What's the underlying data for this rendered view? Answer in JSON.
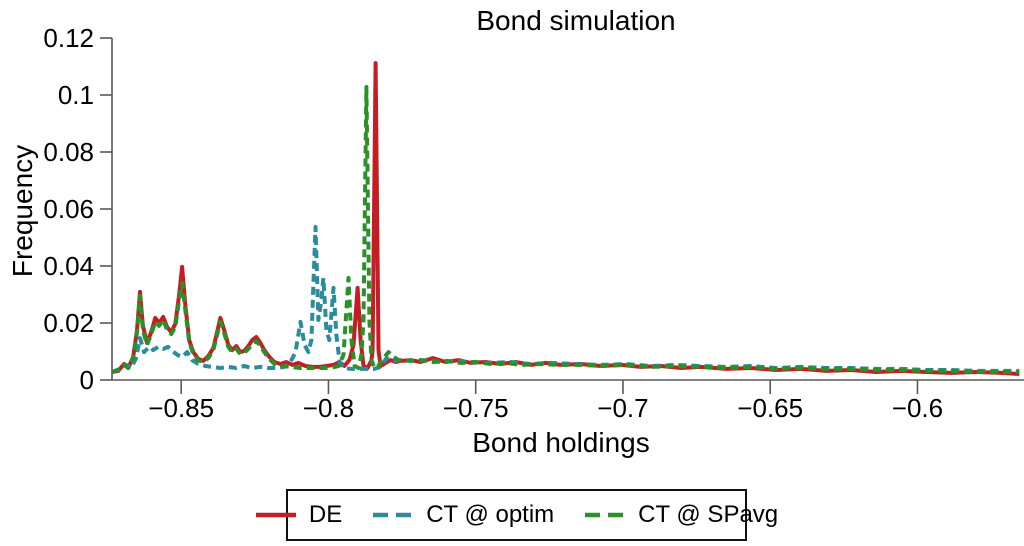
{
  "chart_data": {
    "type": "line",
    "title": "Bond simulation",
    "xlabel": "Bond holdings",
    "ylabel": "Frequency",
    "xlim": [
      -0.8735,
      -0.5645
    ],
    "ylim": [
      0,
      0.12
    ],
    "grid": false,
    "legend_position": "bottom-outside",
    "x_ticks": {
      "values": [
        -0.85,
        -0.8,
        -0.75,
        -0.7,
        -0.65,
        -0.6
      ],
      "labels": [
        "−0.85",
        "−0.8",
        "−0.75",
        "−0.7",
        "−0.65",
        "−0.6"
      ]
    },
    "y_ticks": {
      "values": [
        0,
        0.02,
        0.04,
        0.06,
        0.08,
        0.1,
        0.12
      ],
      "labels": [
        "0",
        "0.02",
        "0.04",
        "0.06",
        "0.08",
        "0.1",
        "0.12"
      ]
    },
    "series": [
      {
        "name": "DE",
        "color": "#c41e24",
        "line_style": "solid",
        "points": [
          [
            -0.8735,
            0.0028
          ],
          [
            -0.8714,
            0.0032
          ],
          [
            -0.8694,
            0.0056
          ],
          [
            -0.868,
            0.0042
          ],
          [
            -0.8663,
            0.0081
          ],
          [
            -0.865,
            0.0175
          ],
          [
            -0.864,
            0.0309
          ],
          [
            -0.863,
            0.019
          ],
          [
            -0.8616,
            0.013
          ],
          [
            -0.8602,
            0.0168
          ],
          [
            -0.8588,
            0.0218
          ],
          [
            -0.8575,
            0.02
          ],
          [
            -0.8561,
            0.0221
          ],
          [
            -0.8548,
            0.0186
          ],
          [
            -0.8534,
            0.0168
          ],
          [
            -0.852,
            0.0197
          ],
          [
            -0.8507,
            0.0298
          ],
          [
            -0.8497,
            0.0397
          ],
          [
            -0.8486,
            0.0263
          ],
          [
            -0.8473,
            0.014
          ],
          [
            -0.8459,
            0.0098
          ],
          [
            -0.8442,
            0.0074
          ],
          [
            -0.8425,
            0.0067
          ],
          [
            -0.8408,
            0.0084
          ],
          [
            -0.8391,
            0.0112
          ],
          [
            -0.8378,
            0.0168
          ],
          [
            -0.8367,
            0.0218
          ],
          [
            -0.8354,
            0.0175
          ],
          [
            -0.834,
            0.0123
          ],
          [
            -0.8327,
            0.0105
          ],
          [
            -0.8313,
            0.0119
          ],
          [
            -0.8299,
            0.0098
          ],
          [
            -0.8286,
            0.0102
          ],
          [
            -0.8272,
            0.0119
          ],
          [
            -0.8259,
            0.014
          ],
          [
            -0.8245,
            0.0151
          ],
          [
            -0.8231,
            0.013
          ],
          [
            -0.8218,
            0.0105
          ],
          [
            -0.8201,
            0.0081
          ],
          [
            -0.8184,
            0.0063
          ],
          [
            -0.8163,
            0.0056
          ],
          [
            -0.8143,
            0.0063
          ],
          [
            -0.8122,
            0.0053
          ],
          [
            -0.8102,
            0.006
          ],
          [
            -0.8078,
            0.0049
          ],
          [
            -0.8054,
            0.0046
          ],
          [
            -0.803,
            0.0046
          ],
          [
            -0.8007,
            0.0049
          ],
          [
            -0.7983,
            0.0053
          ],
          [
            -0.7962,
            0.0063
          ],
          [
            -0.7946,
            0.0049
          ],
          [
            -0.7929,
            0.007
          ],
          [
            -0.7915,
            0.0123
          ],
          [
            -0.7901,
            0.0323
          ],
          [
            -0.7891,
            0.014
          ],
          [
            -0.7881,
            0.0049
          ],
          [
            -0.7867,
            0.0042
          ],
          [
            -0.7854,
            0.007
          ],
          [
            -0.785,
            0.0105
          ],
          [
            -0.784,
            0.1112
          ],
          [
            -0.783,
            0.0105
          ],
          [
            -0.7823,
            0.0049
          ],
          [
            -0.7806,
            0.006
          ],
          [
            -0.7789,
            0.007
          ],
          [
            -0.7772,
            0.0063
          ],
          [
            -0.7755,
            0.0067
          ],
          [
            -0.7721,
            0.007
          ],
          [
            -0.7687,
            0.0063
          ],
          [
            -0.7646,
            0.0077
          ],
          [
            -0.7602,
            0.0063
          ],
          [
            -0.7558,
            0.007
          ],
          [
            -0.7517,
            0.006
          ],
          [
            -0.7466,
            0.0063
          ],
          [
            -0.7415,
            0.0056
          ],
          [
            -0.7364,
            0.0063
          ],
          [
            -0.7313,
            0.0053
          ],
          [
            -0.7262,
            0.006
          ],
          [
            -0.7211,
            0.0053
          ],
          [
            -0.7143,
            0.0056
          ],
          [
            -0.7075,
            0.0049
          ],
          [
            -0.7007,
            0.0053
          ],
          [
            -0.6939,
            0.0046
          ],
          [
            -0.6871,
            0.0049
          ],
          [
            -0.6803,
            0.0042
          ],
          [
            -0.6735,
            0.0046
          ],
          [
            -0.665,
            0.0039
          ],
          [
            -0.6565,
            0.0042
          ],
          [
            -0.648,
            0.0035
          ],
          [
            -0.6395,
            0.0039
          ],
          [
            -0.631,
            0.0032
          ],
          [
            -0.6225,
            0.0035
          ],
          [
            -0.614,
            0.0028
          ],
          [
            -0.6055,
            0.0032
          ],
          [
            -0.597,
            0.0028
          ],
          [
            -0.5885,
            0.0025
          ],
          [
            -0.58,
            0.0028
          ],
          [
            -0.5715,
            0.0025
          ],
          [
            -0.5654,
            0.0021
          ]
        ]
      },
      {
        "name": "CT @ optim",
        "color": "#2b8c9e",
        "line_style": "dashed",
        "points": [
          [
            -0.8735,
            0.0028
          ],
          [
            -0.8707,
            0.0039
          ],
          [
            -0.8687,
            0.0053
          ],
          [
            -0.867,
            0.0042
          ],
          [
            -0.8653,
            0.0077
          ],
          [
            -0.864,
            0.0147
          ],
          [
            -0.8626,
            0.0098
          ],
          [
            -0.8609,
            0.0116
          ],
          [
            -0.8595,
            0.0105
          ],
          [
            -0.8578,
            0.0116
          ],
          [
            -0.8561,
            0.0109
          ],
          [
            -0.8544,
            0.0116
          ],
          [
            -0.853,
            0.0102
          ],
          [
            -0.8513,
            0.0088
          ],
          [
            -0.8497,
            0.0081
          ],
          [
            -0.848,
            0.0098
          ],
          [
            -0.8463,
            0.007
          ],
          [
            -0.8442,
            0.0056
          ],
          [
            -0.8418,
            0.0049
          ],
          [
            -0.8395,
            0.0046
          ],
          [
            -0.8367,
            0.0042
          ],
          [
            -0.834,
            0.0046
          ],
          [
            -0.8313,
            0.0042
          ],
          [
            -0.8286,
            0.0049
          ],
          [
            -0.8259,
            0.0042
          ],
          [
            -0.8231,
            0.0046
          ],
          [
            -0.8204,
            0.0042
          ],
          [
            -0.8177,
            0.0042
          ],
          [
            -0.815,
            0.0046
          ],
          [
            -0.8129,
            0.0063
          ],
          [
            -0.8112,
            0.0098
          ],
          [
            -0.8095,
            0.0204
          ],
          [
            -0.8081,
            0.0123
          ],
          [
            -0.8068,
            0.0098
          ],
          [
            -0.8058,
            0.014
          ],
          [
            -0.8044,
            0.0537
          ],
          [
            -0.8034,
            0.0211
          ],
          [
            -0.8024,
            0.0281
          ],
          [
            -0.8017,
            0.0358
          ],
          [
            -0.8007,
            0.0175
          ],
          [
            -0.7997,
            0.014
          ],
          [
            -0.7983,
            0.0323
          ],
          [
            -0.7973,
            0.0158
          ],
          [
            -0.7962,
            0.0063
          ],
          [
            -0.7949,
            0.0042
          ],
          [
            -0.7925,
            0.0039
          ],
          [
            -0.7898,
            0.0039
          ],
          [
            -0.7871,
            0.0039
          ],
          [
            -0.7844,
            0.0039
          ],
          [
            -0.7823,
            0.0046
          ],
          [
            -0.7803,
            0.0077
          ],
          [
            -0.7782,
            0.0067
          ],
          [
            -0.7755,
            0.007
          ],
          [
            -0.7714,
            0.0067
          ],
          [
            -0.767,
            0.007
          ],
          [
            -0.7619,
            0.0063
          ],
          [
            -0.7568,
            0.0067
          ],
          [
            -0.7517,
            0.0063
          ],
          [
            -0.7449,
            0.006
          ],
          [
            -0.7381,
            0.0063
          ],
          [
            -0.7313,
            0.0056
          ],
          [
            -0.7245,
            0.006
          ],
          [
            -0.716,
            0.0056
          ],
          [
            -0.7075,
            0.0053
          ],
          [
            -0.699,
            0.0056
          ],
          [
            -0.6905,
            0.0049
          ],
          [
            -0.682,
            0.0053
          ],
          [
            -0.6735,
            0.0049
          ],
          [
            -0.665,
            0.0046
          ],
          [
            -0.6565,
            0.0049
          ],
          [
            -0.648,
            0.0042
          ],
          [
            -0.6395,
            0.0046
          ],
          [
            -0.631,
            0.0042
          ],
          [
            -0.6225,
            0.0042
          ],
          [
            -0.614,
            0.0039
          ],
          [
            -0.6055,
            0.0039
          ],
          [
            -0.597,
            0.0035
          ],
          [
            -0.5885,
            0.0035
          ],
          [
            -0.58,
            0.0032
          ],
          [
            -0.5715,
            0.0032
          ],
          [
            -0.5654,
            0.0032
          ]
        ]
      },
      {
        "name": "CT @ SPavg",
        "color": "#2a9127",
        "line_style": "dashed",
        "points": [
          [
            -0.8735,
            0.0028
          ],
          [
            -0.8714,
            0.0035
          ],
          [
            -0.8694,
            0.0053
          ],
          [
            -0.868,
            0.0042
          ],
          [
            -0.8663,
            0.0077
          ],
          [
            -0.865,
            0.0168
          ],
          [
            -0.864,
            0.0295
          ],
          [
            -0.863,
            0.0175
          ],
          [
            -0.8616,
            0.0123
          ],
          [
            -0.8602,
            0.0161
          ],
          [
            -0.8588,
            0.0204
          ],
          [
            -0.8575,
            0.019
          ],
          [
            -0.8561,
            0.0211
          ],
          [
            -0.8548,
            0.0175
          ],
          [
            -0.8534,
            0.0161
          ],
          [
            -0.852,
            0.0186
          ],
          [
            -0.8507,
            0.0281
          ],
          [
            -0.8497,
            0.034
          ],
          [
            -0.8486,
            0.0246
          ],
          [
            -0.8473,
            0.0133
          ],
          [
            -0.8459,
            0.0091
          ],
          [
            -0.8442,
            0.007
          ],
          [
            -0.8425,
            0.0063
          ],
          [
            -0.8408,
            0.0077
          ],
          [
            -0.8391,
            0.0105
          ],
          [
            -0.8378,
            0.0158
          ],
          [
            -0.8367,
            0.0204
          ],
          [
            -0.8354,
            0.0165
          ],
          [
            -0.834,
            0.0116
          ],
          [
            -0.8327,
            0.0098
          ],
          [
            -0.8313,
            0.0109
          ],
          [
            -0.8299,
            0.0091
          ],
          [
            -0.8286,
            0.0095
          ],
          [
            -0.8272,
            0.0109
          ],
          [
            -0.8259,
            0.0126
          ],
          [
            -0.8245,
            0.0137
          ],
          [
            -0.8231,
            0.0119
          ],
          [
            -0.8218,
            0.0098
          ],
          [
            -0.8201,
            0.0074
          ],
          [
            -0.8184,
            0.0056
          ],
          [
            -0.8156,
            0.0049
          ],
          [
            -0.8129,
            0.0046
          ],
          [
            -0.8095,
            0.0042
          ],
          [
            -0.8061,
            0.0042
          ],
          [
            -0.8027,
            0.0042
          ],
          [
            -0.7993,
            0.0042
          ],
          [
            -0.7966,
            0.0049
          ],
          [
            -0.7949,
            0.0088
          ],
          [
            -0.7932,
            0.0358
          ],
          [
            -0.7922,
            0.014
          ],
          [
            -0.7911,
            0.0049
          ],
          [
            -0.7898,
            0.0042
          ],
          [
            -0.7888,
            0.0088
          ],
          [
            -0.7881,
            0.0211
          ],
          [
            -0.7871,
            0.1028
          ],
          [
            -0.7861,
            0.0211
          ],
          [
            -0.7854,
            0.007
          ],
          [
            -0.7844,
            0.0042
          ],
          [
            -0.783,
            0.0049
          ],
          [
            -0.7813,
            0.0077
          ],
          [
            -0.7796,
            0.0098
          ],
          [
            -0.7779,
            0.0081
          ],
          [
            -0.7762,
            0.007
          ],
          [
            -0.7728,
            0.0067
          ],
          [
            -0.7687,
            0.007
          ],
          [
            -0.7643,
            0.0063
          ],
          [
            -0.7599,
            0.0067
          ],
          [
            -0.7551,
            0.006
          ],
          [
            -0.75,
            0.0063
          ],
          [
            -0.7449,
            0.0056
          ],
          [
            -0.7398,
            0.006
          ],
          [
            -0.7347,
            0.0053
          ],
          [
            -0.7279,
            0.0056
          ],
          [
            -0.7211,
            0.0053
          ],
          [
            -0.7143,
            0.0053
          ],
          [
            -0.7075,
            0.0049
          ],
          [
            -0.699,
            0.0053
          ],
          [
            -0.6905,
            0.0046
          ],
          [
            -0.682,
            0.0049
          ],
          [
            -0.6735,
            0.0046
          ],
          [
            -0.665,
            0.0042
          ],
          [
            -0.6565,
            0.0046
          ],
          [
            -0.648,
            0.0039
          ],
          [
            -0.6395,
            0.0042
          ],
          [
            -0.631,
            0.0039
          ],
          [
            -0.6225,
            0.0039
          ],
          [
            -0.614,
            0.0035
          ],
          [
            -0.6055,
            0.0035
          ],
          [
            -0.597,
            0.0032
          ],
          [
            -0.5885,
            0.0032
          ],
          [
            -0.58,
            0.0028
          ],
          [
            -0.5715,
            0.0028
          ],
          [
            -0.5654,
            0.0028
          ]
        ]
      }
    ]
  }
}
